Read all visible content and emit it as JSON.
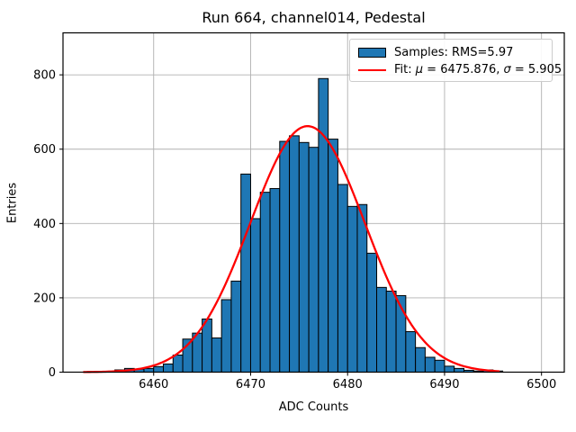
{
  "figure": {
    "title": "Run 664, channel014, Pedestal"
  },
  "axes": {
    "xlabel": "ADC Counts",
    "ylabel": "Entries"
  },
  "legend": {
    "samples": "Samples: RMS=5.97",
    "fit": {
      "prefix": "Fit: ",
      "mu": "μ",
      "eq1": " = 6475.876, ",
      "sigma": "σ",
      "eq2": " = 5.905"
    }
  },
  "chart_data": {
    "type": "bar",
    "subtype": "histogram-with-gaussian-fit",
    "title": "Run 664, channel014, Pedestal",
    "xlabel": "ADC Counts",
    "ylabel": "Entries",
    "bin_start": 6453,
    "bin_width": 1,
    "categories": [
      6453,
      6454,
      6455,
      6456,
      6457,
      6458,
      6459,
      6460,
      6461,
      6462,
      6463,
      6464,
      6465,
      6466,
      6467,
      6468,
      6469,
      6470,
      6471,
      6472,
      6473,
      6474,
      6475,
      6476,
      6477,
      6478,
      6479,
      6480,
      6481,
      6482,
      6483,
      6484,
      6485,
      6486,
      6487,
      6488,
      6489,
      6490,
      6491,
      6492,
      6493,
      6494,
      6495,
      6496,
      6497,
      6498,
      6499
    ],
    "values": [
      0,
      0,
      0,
      6,
      10,
      8,
      10,
      15,
      22,
      46,
      89,
      105,
      143,
      92,
      195,
      245,
      533,
      413,
      484,
      494,
      621,
      636,
      618,
      605,
      790,
      627,
      505,
      446,
      451,
      320,
      228,
      218,
      206,
      109,
      66,
      40,
      32,
      16,
      10,
      5,
      3,
      6,
      3,
      0,
      0,
      0,
      0
    ],
    "xlim": [
      6450.65,
      6502.35
    ],
    "ylim": [
      0,
      913
    ],
    "x_ticks": [
      6460,
      6470,
      6480,
      6490,
      6500
    ],
    "y_ticks": [
      0,
      200,
      400,
      600,
      800
    ],
    "grid": true,
    "legend_position": "upper right",
    "series": [
      {
        "name": "Samples: RMS=5.97",
        "type": "histogram",
        "rms": 5.97
      },
      {
        "name": "Fit: μ = 6475.876, σ = 5.905",
        "type": "gaussian-fit",
        "mu": 6475.876,
        "sigma": 5.905,
        "amplitude": 662,
        "x_min": 6452.8,
        "x_max": 6495.6
      }
    ],
    "colors": {
      "bar_fill": "#1f77b4",
      "bar_edge": "#000000",
      "fit_line": "#ff0000",
      "grid": "#b0b0b0",
      "frame": "#000000",
      "background": "#ffffff"
    }
  }
}
